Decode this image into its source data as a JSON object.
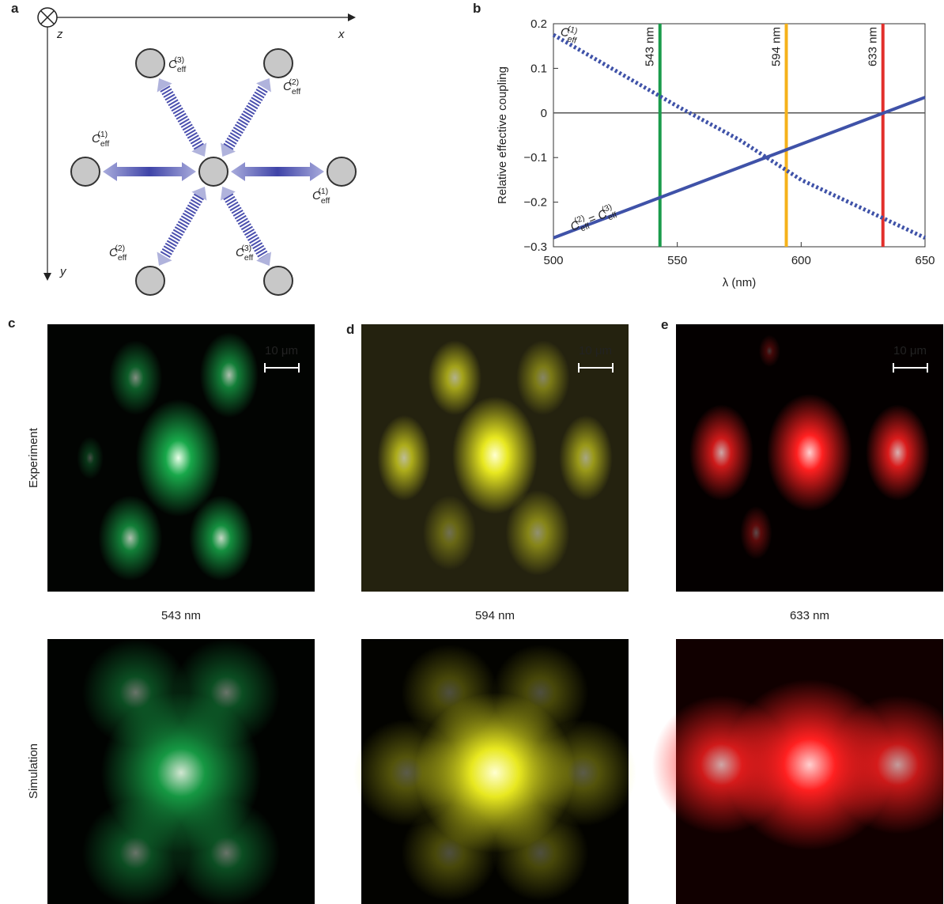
{
  "panel_a": {
    "label": "a",
    "axes": [
      "z",
      "x",
      "y"
    ],
    "couplings": [
      "Ceff(3)",
      "Ceff(2)",
      "Ceff(1)",
      "Ceff(1)",
      "Ceff(2)",
      "Ceff(3)"
    ]
  },
  "chart_data": {
    "type": "line",
    "panel_label": "b",
    "x_label": "λ (nm)",
    "y_label": "Relative effective coupling",
    "x": [
      500,
      525,
      550,
      575,
      600,
      625,
      650
    ],
    "series": [
      {
        "name": "Ceff(1)",
        "color": "#3f52a8",
        "style": "dotted",
        "values": [
          0.175,
          0.095,
          0.015,
          -0.06,
          -0.15,
          -0.215,
          -0.28
        ]
      },
      {
        "name": "Ceff(2) = Ceff(3)",
        "color": "#3f52a8",
        "style": "solid",
        "values": [
          -0.28,
          -0.2275,
          -0.175,
          -0.1225,
          -0.07,
          -0.0175,
          0.035
        ]
      }
    ],
    "vlines": [
      {
        "x": 543,
        "label": "543 nm",
        "color": "#1a9b4b"
      },
      {
        "x": 594,
        "label": "594 nm",
        "color": "#f5b21b"
      },
      {
        "x": 633,
        "label": "633 nm",
        "color": "#e2302c"
      }
    ],
    "hlines": [
      0
    ],
    "xlim": [
      500,
      650
    ],
    "xticks": [
      500,
      550,
      600,
      650
    ],
    "ylim": [
      -0.3,
      0.2
    ],
    "yticks": [
      {
        "value": -0.3,
        "label": "−0.3"
      },
      {
        "value": -0.2,
        "label": "−0.2"
      },
      {
        "value": -0.1,
        "label": "−0.1"
      },
      0,
      0.1,
      0.2
    ]
  },
  "panel_labels": [
    "c",
    "d",
    "e"
  ],
  "row_labels": [
    "Experiment",
    "Simulation"
  ],
  "wavelengths": [
    "543 nm",
    "594 nm",
    "633 nm"
  ],
  "scale_bar": "10 μm"
}
